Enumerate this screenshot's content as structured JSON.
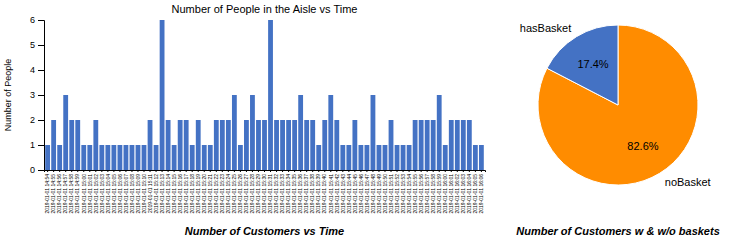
{
  "chart_data": [
    {
      "type": "bar",
      "title": "Number of People in the Aisle vs Time",
      "y_label": "Number of People",
      "annotations": [
        "Number of Customers vs Time"
      ],
      "categories": [
        "2019-01-01 14:54",
        "2019-01-01 14:55",
        "2019-01-01 14:56",
        "2019-01-01 14:57",
        "2019-01-01 14:58",
        "2019-01-01 14:59",
        "2019-01-01 15:00",
        "2019-01-01 15:01",
        "2019-01-01 15:02",
        "2019-01-01 15:03",
        "2019-01-01 15:04",
        "2019-01-01 15:05",
        "2019-01-01 15:06",
        "2019-01-01 15:07",
        "2019-01-01 15:08",
        "2019-01-01 15:09",
        "2019-01-01 15:10",
        "2019-01-01 15:11",
        "2019-01-01 15:12",
        "2019-01-01 15:13",
        "2019-01-01 15:14",
        "2019-01-01 15:15",
        "2019-01-01 15:16",
        "2019-01-01 15:17",
        "2019-01-01 15:18",
        "2019-01-01 15:19",
        "2019-01-01 15:20",
        "2019-01-01 15:21",
        "2019-01-01 15:22",
        "2019-01-01 15:23",
        "2019-01-01 15:24",
        "2019-01-01 15:25",
        "2019-01-01 15:26",
        "2019-01-01 15:27",
        "2019-01-01 15:28",
        "2019-01-01 15:29",
        "2019-01-01 15:30",
        "2019-01-01 15:31",
        "2019-01-01 15:32",
        "2019-01-01 15:33",
        "2019-01-01 15:34",
        "2019-01-01 15:35",
        "2019-01-01 15:36",
        "2019-01-01 15:37",
        "2019-01-01 15:38",
        "2019-01-01 15:39",
        "2019-01-01 15:40",
        "2019-01-01 15:41",
        "2019-01-01 15:42",
        "2019-01-01 15:43",
        "2019-01-01 15:44",
        "2019-01-01 15:45",
        "2019-01-01 15:46",
        "2019-01-01 15:47",
        "2019-01-01 15:48",
        "2019-01-01 15:49",
        "2019-01-01 15:50",
        "2019-01-01 15:51",
        "2019-01-01 15:52",
        "2019-01-01 15:53",
        "2019-01-01 15:54",
        "2019-01-01 15:55",
        "2019-01-01 15:56",
        "2019-01-01 15:57",
        "2019-01-01 15:58",
        "2019-01-01 15:59",
        "2019-01-01 16:00",
        "2019-01-01 16:01",
        "2019-01-01 16:02",
        "2019-01-01 16:03",
        "2019-01-01 16:04",
        "2019-01-01 16:05",
        "2019-01-01 16:06"
      ],
      "values": [
        1,
        2,
        1,
        3,
        2,
        2,
        1,
        1,
        2,
        1,
        1,
        1,
        1,
        1,
        1,
        1,
        1,
        2,
        1,
        6,
        2,
        1,
        2,
        2,
        1,
        2,
        1,
        1,
        2,
        2,
        2,
        3,
        1,
        2,
        3,
        2,
        2,
        6,
        2,
        2,
        2,
        2,
        3,
        2,
        2,
        1,
        2,
        3,
        2,
        1,
        1,
        2,
        1,
        1,
        3,
        1,
        1,
        2,
        1,
        1,
        1,
        2,
        2,
        2,
        2,
        3,
        1,
        2,
        2,
        2,
        2,
        1,
        1
      ],
      "color": "#4472C4",
      "ylim": [
        0,
        6
      ],
      "yticks": [
        0,
        1,
        2,
        3,
        4,
        5,
        6
      ],
      "grid": false
    },
    {
      "type": "pie",
      "annotations": [
        "Number of Customers w & w/o baskets"
      ],
      "categories": [
        "noBasket",
        "hasBasket"
      ],
      "values": [
        82.6,
        17.4
      ],
      "value_labels": [
        "82.6%",
        "17.4%"
      ],
      "colors": [
        "#FF8C00",
        "#4472C4"
      ],
      "data_labels": true
    }
  ]
}
